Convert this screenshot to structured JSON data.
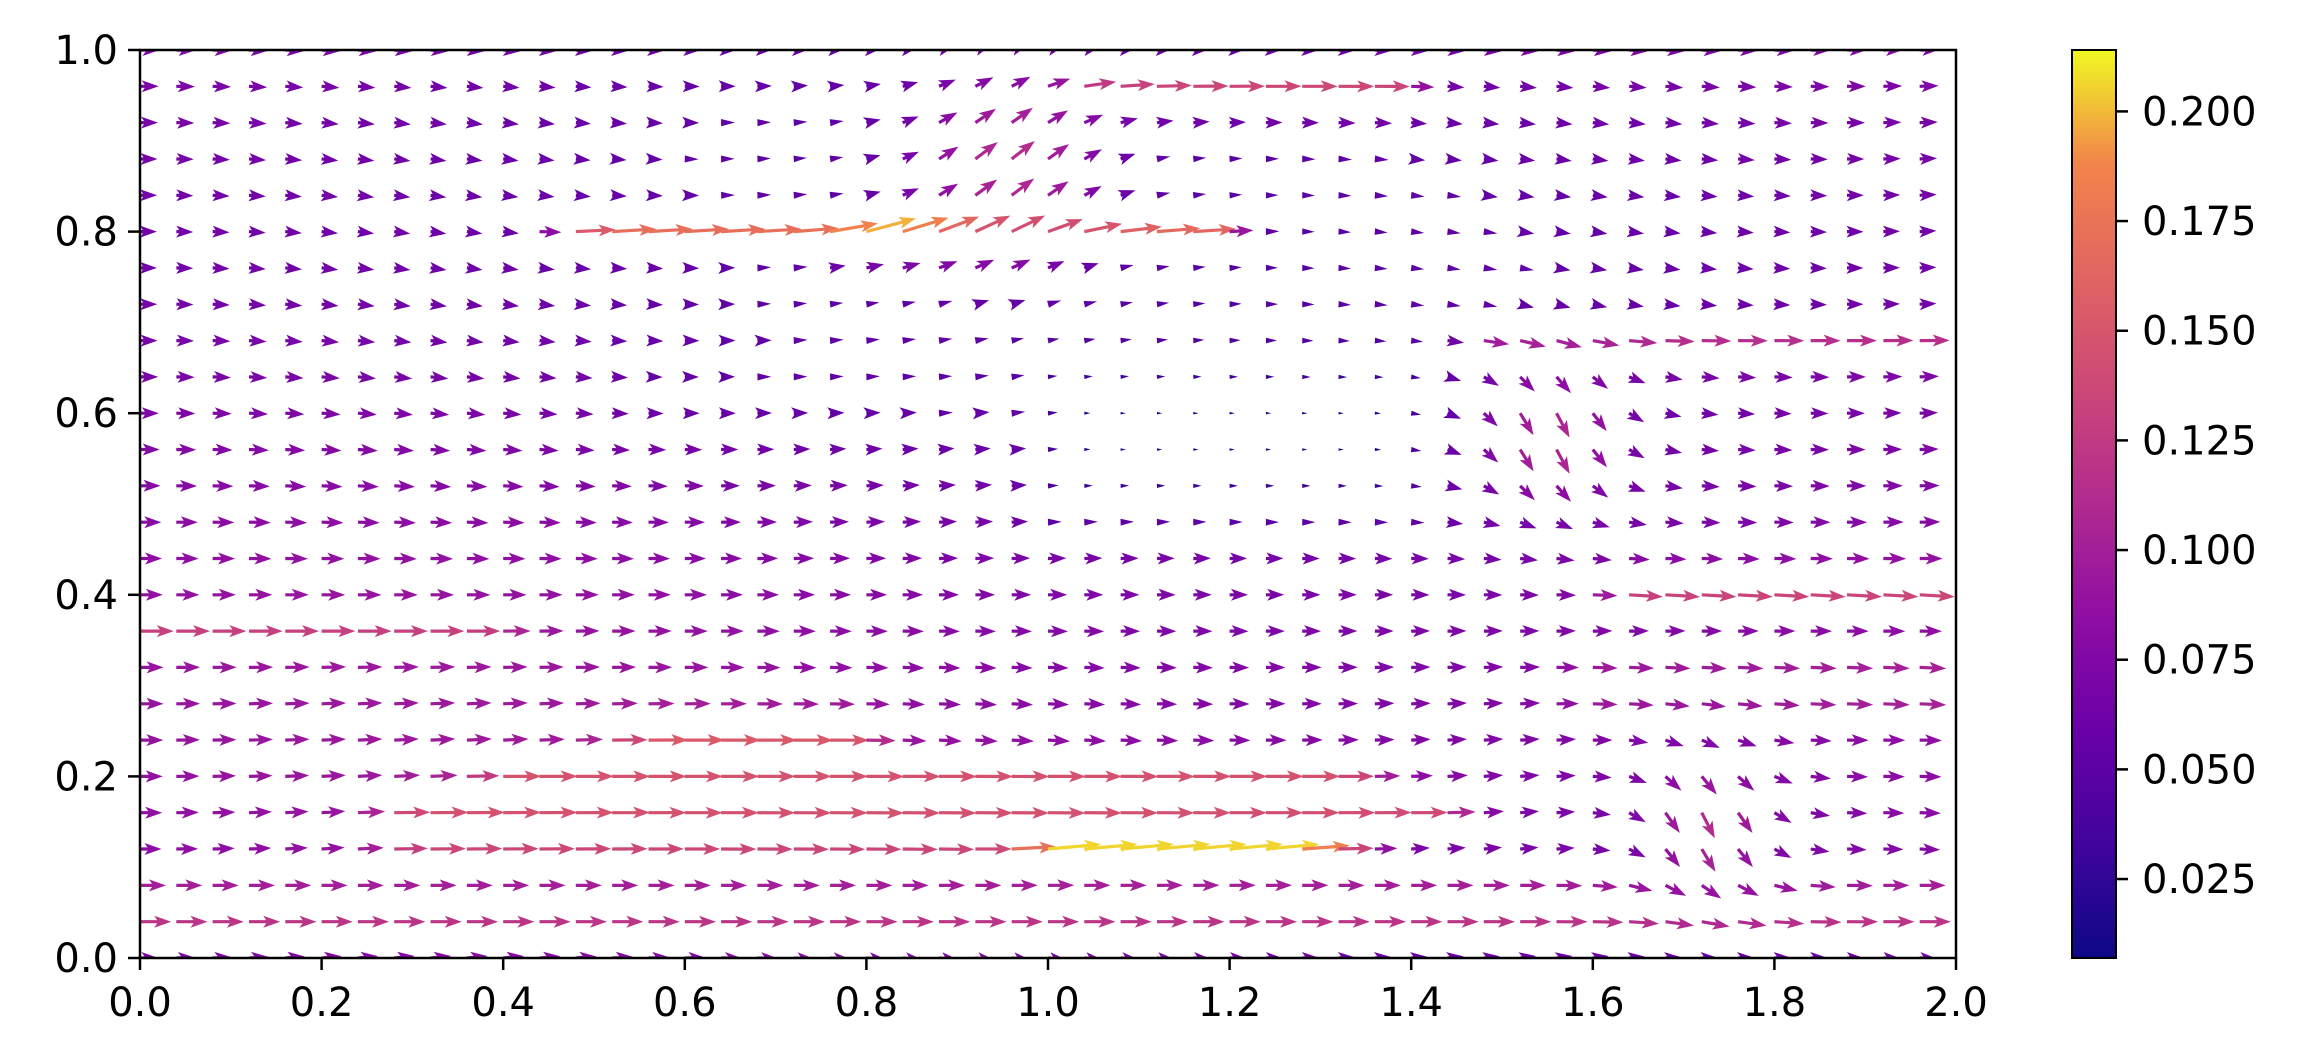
{
  "chart_data": {
    "type": "quiver",
    "title": "",
    "xlabel": "",
    "ylabel": "",
    "xlim": [
      0.0,
      2.0
    ],
    "ylim": [
      0.0,
      1.0
    ],
    "grid": false,
    "colormap": "plasma",
    "colorbar": {
      "label": "",
      "range": [
        0.007,
        0.214
      ],
      "ticks": [
        "0.025",
        "0.050",
        "0.075",
        "0.100",
        "0.125",
        "0.150",
        "0.175",
        "0.200"
      ],
      "tick_values": [
        0.025,
        0.05,
        0.075,
        0.1,
        0.125,
        0.15,
        0.175,
        0.2
      ]
    },
    "x_ticks": [
      "0.0",
      "0.2",
      "0.4",
      "0.6",
      "0.8",
      "1.0",
      "1.2",
      "1.4",
      "1.6",
      "1.8",
      "2.0"
    ],
    "y_ticks": [
      "0.0",
      "0.2",
      "0.4",
      "0.6",
      "0.8",
      "1.0"
    ],
    "grid_spacing": {
      "dx": 0.04,
      "dy": 0.04
    },
    "field_model": {
      "description": "Approximate velocity field: background horizontal flow plus magnitude streaks",
      "streaks": [
        {
          "x0": 0.0,
          "x1": 2.0,
          "y": 0.04,
          "mag": 0.12,
          "vy": 0.0
        },
        {
          "x0": 0.0,
          "x1": 2.0,
          "y": 0.08,
          "mag": 0.1,
          "vy": 0.0
        },
        {
          "x0": 0.3,
          "x1": 1.3,
          "y": 0.13,
          "mag": 0.15,
          "vy": 0.0
        },
        {
          "x0": 1.0,
          "x1": 1.25,
          "y": 0.125,
          "mag": 0.21,
          "vy": 0.02
        },
        {
          "x0": 0.3,
          "x1": 1.4,
          "y": 0.17,
          "mag": 0.16,
          "vy": 0.0
        },
        {
          "x0": 0.4,
          "x1": 1.3,
          "y": 0.205,
          "mag": 0.15,
          "vy": 0.0
        },
        {
          "x0": 0.55,
          "x1": 0.75,
          "y": 0.25,
          "mag": 0.17,
          "vy": 0.0
        },
        {
          "x0": 1.6,
          "x1": 2.0,
          "y": 0.3,
          "mag": 0.13,
          "vy": -0.01
        },
        {
          "x0": 1.65,
          "x1": 2.0,
          "y": 0.41,
          "mag": 0.15,
          "vy": -0.01
        },
        {
          "x0": 0.0,
          "x1": 0.35,
          "y": 0.36,
          "mag": 0.13,
          "vy": 0.0
        },
        {
          "x0": 0.5,
          "x1": 1.15,
          "y": 0.8,
          "mag": 0.17,
          "vy": 0.01
        },
        {
          "x0": 0.8,
          "x1": 0.95,
          "y": 0.79,
          "mag": 0.21,
          "vy": 0.06
        },
        {
          "x0": 1.05,
          "x1": 1.35,
          "y": 0.95,
          "mag": 0.16,
          "vy": 0.0
        },
        {
          "x0": 1.5,
          "x1": 2.0,
          "y": 0.67,
          "mag": 0.13,
          "vy": 0.0
        }
      ],
      "jets": [
        {
          "x": 1.72,
          "y": 0.15,
          "r": 0.12,
          "vx": 0.05,
          "vy": -0.1,
          "mag": 0.13
        },
        {
          "x": 1.55,
          "y": 0.58,
          "r": 0.12,
          "vx": 0.05,
          "vy": -0.1,
          "mag": 0.13
        },
        {
          "x": 0.95,
          "y": 0.87,
          "r": 0.15,
          "vx": 0.09,
          "vy": 0.07,
          "mag": 0.15
        }
      ],
      "calm_regions": [
        {
          "x0": 0.95,
          "x1": 1.45,
          "y0": 0.45,
          "y1": 0.7,
          "mag": 0.02
        },
        {
          "x0": 0.5,
          "x1": 0.95,
          "y0": 0.55,
          "y1": 0.7,
          "mag": 0.05
        }
      ]
    }
  }
}
